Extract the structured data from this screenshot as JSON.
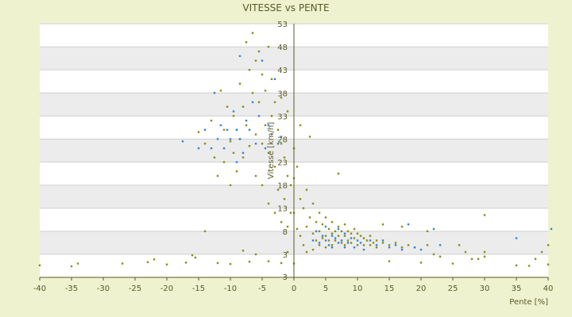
{
  "chart_data": {
    "type": "scatter",
    "title": "VITESSE vs PENTE",
    "xlabel": "Pente [%]",
    "ylabel": "Vitesse [km/h]",
    "xlim": [
      -40,
      40
    ],
    "ylim": [
      -2,
      53
    ],
    "x_ticks": [
      -40,
      -35,
      -30,
      -25,
      -20,
      -15,
      -10,
      -5,
      0,
      5,
      10,
      15,
      20,
      25,
      30,
      35,
      40
    ],
    "y_ticks": [
      3,
      8,
      13,
      18,
      23,
      28,
      33,
      38,
      43,
      48,
      53
    ],
    "y_tick_labels": [
      "3",
      "8",
      "13",
      "18",
      "23",
      "28",
      "33",
      "38",
      "43",
      "48",
      "53"
    ],
    "bottom_axis_label": "3",
    "grid": true,
    "legend": "none",
    "colors": {
      "background": "#eef2cf",
      "band_light": "#ffffff",
      "band_dark": "#ececec",
      "series_olive": "#8c8c14",
      "series_blue": "#2e86de",
      "axis": "#5a5a28"
    },
    "series": [
      {
        "color": "#8c8c14",
        "points": [
          [
            -40.0,
            0.6
          ],
          [
            -35.0,
            0.4
          ],
          [
            -34.0,
            1.0
          ],
          [
            -27.0,
            1.0
          ],
          [
            -23.0,
            1.3
          ],
          [
            -22.0,
            1.9
          ],
          [
            -20.0,
            0.8
          ],
          [
            -17.0,
            1.2
          ],
          [
            -16.0,
            2.8
          ],
          [
            -15.5,
            2.3
          ],
          [
            -14.0,
            8.0
          ],
          [
            -12.0,
            1.1
          ],
          [
            -10.0,
            0.9
          ],
          [
            -8.0,
            3.8
          ],
          [
            -7.0,
            1.4
          ],
          [
            -6.0,
            3.0
          ],
          [
            -4.0,
            1.5
          ],
          [
            -2.0,
            1.1
          ],
          [
            -1.0,
            3.5
          ],
          [
            -15.0,
            29.5
          ],
          [
            -14.0,
            27.0
          ],
          [
            -13.0,
            32.0
          ],
          [
            -12.5,
            24.0
          ],
          [
            -12.0,
            20.0
          ],
          [
            -11.5,
            38.5
          ],
          [
            -11.0,
            30.0
          ],
          [
            -11.0,
            23.0
          ],
          [
            -10.5,
            35.0
          ],
          [
            -10.0,
            27.5
          ],
          [
            -10.0,
            18.0
          ],
          [
            -9.5,
            33.0
          ],
          [
            -9.5,
            25.0
          ],
          [
            -9.0,
            30.0
          ],
          [
            -9.0,
            21.0
          ],
          [
            -8.5,
            40.0
          ],
          [
            -8.5,
            28.0
          ],
          [
            -8.0,
            35.0
          ],
          [
            -8.0,
            24.0
          ],
          [
            -7.5,
            49.0
          ],
          [
            -7.5,
            31.0
          ],
          [
            -7.0,
            43.0
          ],
          [
            -7.0,
            26.5
          ],
          [
            -6.5,
            51.0
          ],
          [
            -6.5,
            38.0
          ],
          [
            -6.0,
            45.0
          ],
          [
            -6.0,
            29.0
          ],
          [
            -6.0,
            20.0
          ],
          [
            -5.5,
            47.0
          ],
          [
            -5.5,
            36.0
          ],
          [
            -5.0,
            42.0
          ],
          [
            -5.0,
            27.0
          ],
          [
            -5.0,
            18.0
          ],
          [
            -4.5,
            38.5
          ],
          [
            -4.5,
            31.0
          ],
          [
            -4.0,
            48.0
          ],
          [
            -4.0,
            25.0
          ],
          [
            -4.0,
            14.0
          ],
          [
            -3.5,
            41.0
          ],
          [
            -3.5,
            33.0
          ],
          [
            -3.0,
            36.0
          ],
          [
            -3.0,
            22.0
          ],
          [
            -3.0,
            12.0
          ],
          [
            -2.5,
            30.0
          ],
          [
            -2.5,
            17.0
          ],
          [
            -2.0,
            37.0
          ],
          [
            -2.0,
            27.0
          ],
          [
            -2.0,
            10.0
          ],
          [
            -1.5,
            24.0
          ],
          [
            -1.5,
            15.0
          ],
          [
            -1.0,
            34.0
          ],
          [
            -1.0,
            20.0
          ],
          [
            -1.0,
            9.0
          ],
          [
            -0.5,
            18.0
          ],
          [
            -0.5,
            12.0
          ],
          [
            0.0,
            26.0
          ],
          [
            0.0,
            19.5
          ],
          [
            0.0,
            12.0
          ],
          [
            0.0,
            1.0
          ],
          [
            0.5,
            22.0
          ],
          [
            0.5,
            8.5
          ],
          [
            1.0,
            31.0
          ],
          [
            1.0,
            15.0
          ],
          [
            1.0,
            7.0
          ],
          [
            1.5,
            13.0
          ],
          [
            1.5,
            5.0
          ],
          [
            2.0,
            17.0
          ],
          [
            2.0,
            9.0
          ],
          [
            2.0,
            3.5
          ],
          [
            2.5,
            11.0
          ],
          [
            2.5,
            28.5
          ],
          [
            3.0,
            14.0
          ],
          [
            3.0,
            7.5
          ],
          [
            3.0,
            4.0
          ],
          [
            3.5,
            10.0
          ],
          [
            3.5,
            6.0
          ],
          [
            4.0,
            12.0
          ],
          [
            4.0,
            8.0
          ],
          [
            4.0,
            5.0
          ],
          [
            4.5,
            9.5
          ],
          [
            4.5,
            6.5
          ],
          [
            5.0,
            11.0
          ],
          [
            5.0,
            7.0
          ],
          [
            5.0,
            4.5
          ],
          [
            5.5,
            8.5
          ],
          [
            5.5,
            6.0
          ],
          [
            6.0,
            10.0
          ],
          [
            6.0,
            7.5
          ],
          [
            6.0,
            5.0
          ],
          [
            6.5,
            8.0
          ],
          [
            6.5,
            6.0
          ],
          [
            7.0,
            9.0
          ],
          [
            7.0,
            7.0
          ],
          [
            7.0,
            20.5
          ],
          [
            7.5,
            8.0
          ],
          [
            7.5,
            5.5
          ],
          [
            8.0,
            9.5
          ],
          [
            8.0,
            7.0
          ],
          [
            8.0,
            5.0
          ],
          [
            8.5,
            8.0
          ],
          [
            8.5,
            6.0
          ],
          [
            9.0,
            7.5
          ],
          [
            9.0,
            5.5
          ],
          [
            9.5,
            8.5
          ],
          [
            9.5,
            6.5
          ],
          [
            10.0,
            7.5
          ],
          [
            10.0,
            5.0
          ],
          [
            10.5,
            7.0
          ],
          [
            11.0,
            6.5
          ],
          [
            11.0,
            5.0
          ],
          [
            11.5,
            6.0
          ],
          [
            12.0,
            7.0
          ],
          [
            12.0,
            5.0
          ],
          [
            12.5,
            5.5
          ],
          [
            13.0,
            6.0
          ],
          [
            13.0,
            4.5
          ],
          [
            14.0,
            5.5
          ],
          [
            14.0,
            9.5
          ],
          [
            15.0,
            5.0
          ],
          [
            15.0,
            1.5
          ],
          [
            16.0,
            5.5
          ],
          [
            17.0,
            4.5
          ],
          [
            17.0,
            9.0
          ],
          [
            18.0,
            5.0
          ],
          [
            19.0,
            4.5
          ],
          [
            20.0,
            1.2
          ],
          [
            21.0,
            8.0
          ],
          [
            21.0,
            5.0
          ],
          [
            22.0,
            3.0
          ],
          [
            23.0,
            2.5
          ],
          [
            25.0,
            1.0
          ],
          [
            26.0,
            5.0
          ],
          [
            27.0,
            3.5
          ],
          [
            28.0,
            2.0
          ],
          [
            29.0,
            2.0
          ],
          [
            30.0,
            11.5
          ],
          [
            30.0,
            3.5
          ],
          [
            30.0,
            2.5
          ],
          [
            35.0,
            0.6
          ],
          [
            37.0,
            0.5
          ],
          [
            38.0,
            2.0
          ],
          [
            39.0,
            3.5
          ],
          [
            40.0,
            0.8
          ],
          [
            40.0,
            5.0
          ]
        ]
      },
      {
        "color": "#2e86de",
        "points": [
          [
            -17.5,
            27.5
          ],
          [
            -15.0,
            26.0
          ],
          [
            -14.0,
            30.0
          ],
          [
            -13.0,
            26.0
          ],
          [
            -12.5,
            38.0
          ],
          [
            -12.0,
            28.0
          ],
          [
            -11.5,
            31.0
          ],
          [
            -11.0,
            26.0
          ],
          [
            -10.5,
            30.0
          ],
          [
            -10.0,
            28.0
          ],
          [
            -9.5,
            34.0
          ],
          [
            -9.0,
            30.0
          ],
          [
            -9.0,
            23.0
          ],
          [
            -8.5,
            46.0
          ],
          [
            -8.5,
            28.0
          ],
          [
            -8.0,
            25.0
          ],
          [
            -7.5,
            32.0
          ],
          [
            -7.0,
            30.0
          ],
          [
            -6.5,
            36.0
          ],
          [
            -6.0,
            27.0
          ],
          [
            -5.5,
            33.0
          ],
          [
            -5.0,
            45.0
          ],
          [
            -4.5,
            26.0
          ],
          [
            -4.0,
            31.0
          ],
          [
            -3.5,
            29.0
          ],
          [
            -3.0,
            41.0
          ],
          [
            -2.5,
            27.0
          ],
          [
            -2.0,
            28.5
          ],
          [
            3.0,
            6.0
          ],
          [
            3.5,
            8.0
          ],
          [
            4.0,
            5.5
          ],
          [
            4.5,
            7.0
          ],
          [
            5.0,
            6.0
          ],
          [
            5.0,
            9.0
          ],
          [
            5.5,
            5.0
          ],
          [
            6.0,
            7.0
          ],
          [
            6.0,
            4.5
          ],
          [
            6.5,
            6.5
          ],
          [
            7.0,
            5.5
          ],
          [
            7.0,
            8.5
          ],
          [
            7.5,
            6.0
          ],
          [
            8.0,
            4.5
          ],
          [
            8.0,
            7.5
          ],
          [
            8.5,
            5.5
          ],
          [
            9.0,
            6.5
          ],
          [
            9.5,
            4.5
          ],
          [
            10.0,
            6.0
          ],
          [
            10.5,
            5.5
          ],
          [
            11.0,
            4.0
          ],
          [
            12.0,
            6.0
          ],
          [
            13.0,
            5.0
          ],
          [
            14.0,
            6.0
          ],
          [
            15.0,
            4.5
          ],
          [
            16.0,
            5.0
          ],
          [
            17.0,
            4.0
          ],
          [
            18.0,
            9.5
          ],
          [
            19.0,
            4.5
          ],
          [
            20.0,
            4.0
          ],
          [
            22.0,
            8.5
          ],
          [
            23.0,
            5.0
          ],
          [
            35.0,
            6.5
          ],
          [
            40.5,
            8.5
          ]
        ]
      }
    ]
  }
}
